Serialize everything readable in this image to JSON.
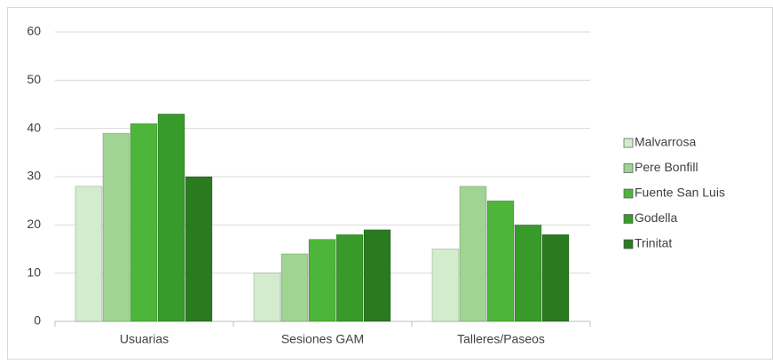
{
  "chart_data": {
    "type": "bar",
    "categories": [
      "Usuarias",
      "Sesiones GAM",
      "Talleres/Paseos"
    ],
    "series": [
      {
        "name": "Malvarrosa",
        "color": "#d4ecce",
        "values": [
          28,
          10,
          15
        ]
      },
      {
        "name": "Pere Bonfill",
        "color": "#9fd493",
        "values": [
          39,
          14,
          28
        ]
      },
      {
        "name": "Fuente San Luis",
        "color": "#4db53a",
        "values": [
          41,
          17,
          25
        ]
      },
      {
        "name": "Godella",
        "color": "#389a2a",
        "values": [
          43,
          18,
          20
        ]
      },
      {
        "name": "Trinitat",
        "color": "#2a7a20",
        "values": [
          30,
          19,
          18
        ]
      }
    ],
    "ylim": [
      0,
      60
    ],
    "yticks": [
      0,
      10,
      20,
      30,
      40,
      50,
      60
    ],
    "grid": true,
    "legend": "right"
  }
}
